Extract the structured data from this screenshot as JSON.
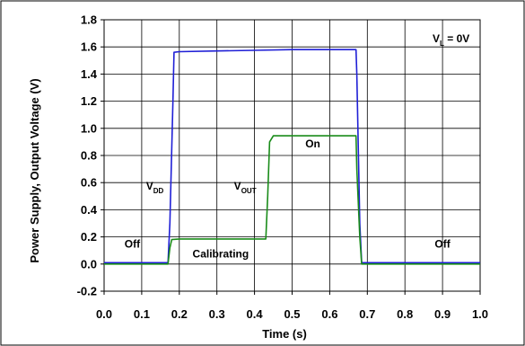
{
  "chart_data": {
    "type": "line",
    "xlabel": "Time (s)",
    "ylabel": "Power Supply, Output Voltage (V)",
    "xlim": [
      0.0,
      1.0
    ],
    "ylim": [
      -0.2,
      1.8
    ],
    "x_ticks": [
      "0.0",
      "0.1",
      "0.2",
      "0.3",
      "0.4",
      "0.5",
      "0.6",
      "0.7",
      "0.8",
      "0.9",
      "1.0"
    ],
    "y_ticks": [
      "-0.2",
      "0.0",
      "0.2",
      "0.4",
      "0.6",
      "0.8",
      "1.0",
      "1.2",
      "1.4",
      "1.6",
      "1.8"
    ],
    "grid": true,
    "series": [
      {
        "name": "VDD",
        "label_main": "V",
        "label_sub": "DD",
        "color": "#1f1fd6",
        "x": [
          0.0,
          0.17,
          0.175,
          0.183,
          0.186,
          0.2,
          0.3,
          0.4,
          0.5,
          0.6,
          0.67,
          0.672,
          0.68,
          0.685,
          0.7,
          0.8,
          0.9,
          1.0
        ],
        "y": [
          0.01,
          0.01,
          0.3,
          1.2,
          1.56,
          1.565,
          1.57,
          1.575,
          1.58,
          1.58,
          1.58,
          1.4,
          0.3,
          0.01,
          0.01,
          0.01,
          0.01,
          0.01
        ]
      },
      {
        "name": "VOUT",
        "label_main": "V",
        "label_sub": "OUT",
        "color": "#1a8c1a",
        "x": [
          0.0,
          0.17,
          0.175,
          0.18,
          0.2,
          0.3,
          0.43,
          0.435,
          0.44,
          0.45,
          0.5,
          0.6,
          0.67,
          0.672,
          0.68,
          0.685,
          0.7,
          0.8,
          0.9,
          1.0
        ],
        "y": [
          0.0,
          0.0,
          0.12,
          0.18,
          0.185,
          0.185,
          0.185,
          0.5,
          0.9,
          0.945,
          0.945,
          0.945,
          0.945,
          0.7,
          0.2,
          0.0,
          0.0,
          0.0,
          0.0,
          0.0
        ]
      }
    ],
    "annotations": [
      {
        "id": "ann-off-left",
        "text": "Off",
        "x": 0.075,
        "y": 0.12
      },
      {
        "id": "ann-calibrating",
        "text": "Calibrating",
        "x": 0.31,
        "y": 0.05
      },
      {
        "id": "ann-on",
        "text": "On",
        "x": 0.555,
        "y": 0.86
      },
      {
        "id": "ann-off-right",
        "text": "Off",
        "x": 0.9,
        "y": 0.12
      }
    ],
    "series_labels": [
      {
        "id": "vdd-label",
        "series": 0,
        "x": 0.135,
        "y": 0.55
      },
      {
        "id": "vout-label",
        "series": 1,
        "x": 0.375,
        "y": 0.55
      }
    ],
    "legend_note": {
      "main": "V",
      "sub": "L",
      "suffix": " = 0V"
    }
  }
}
